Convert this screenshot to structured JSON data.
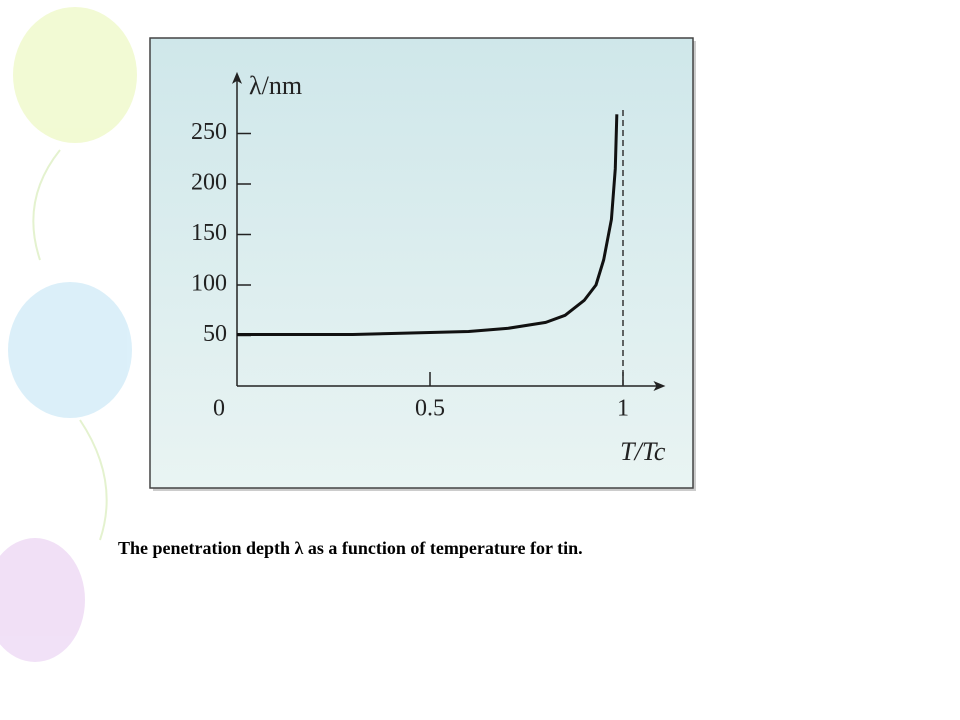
{
  "chart_data": {
    "type": "line",
    "caption": "The penetration depth λ as a function of temperature for tin.",
    "y_label": "λ/nm",
    "x_label": "T/Tc",
    "xlim": [
      0,
      1.11
    ],
    "ylim": [
      0,
      311
    ],
    "xticks": [
      0,
      0.5,
      1
    ],
    "yticks": [
      50,
      100,
      150,
      200,
      250
    ],
    "series": [
      {
        "color": "#111111",
        "x": [
          0,
          0.1,
          0.2,
          0.3,
          0.4,
          0.5,
          0.6,
          0.7,
          0.8,
          0.85,
          0.9,
          0.93,
          0.95,
          0.97,
          0.98,
          0.984
        ],
        "values": [
          51,
          51,
          51,
          51,
          52,
          53,
          54,
          57,
          63,
          70,
          85,
          100,
          125,
          165,
          215,
          269
        ]
      }
    ]
  }
}
